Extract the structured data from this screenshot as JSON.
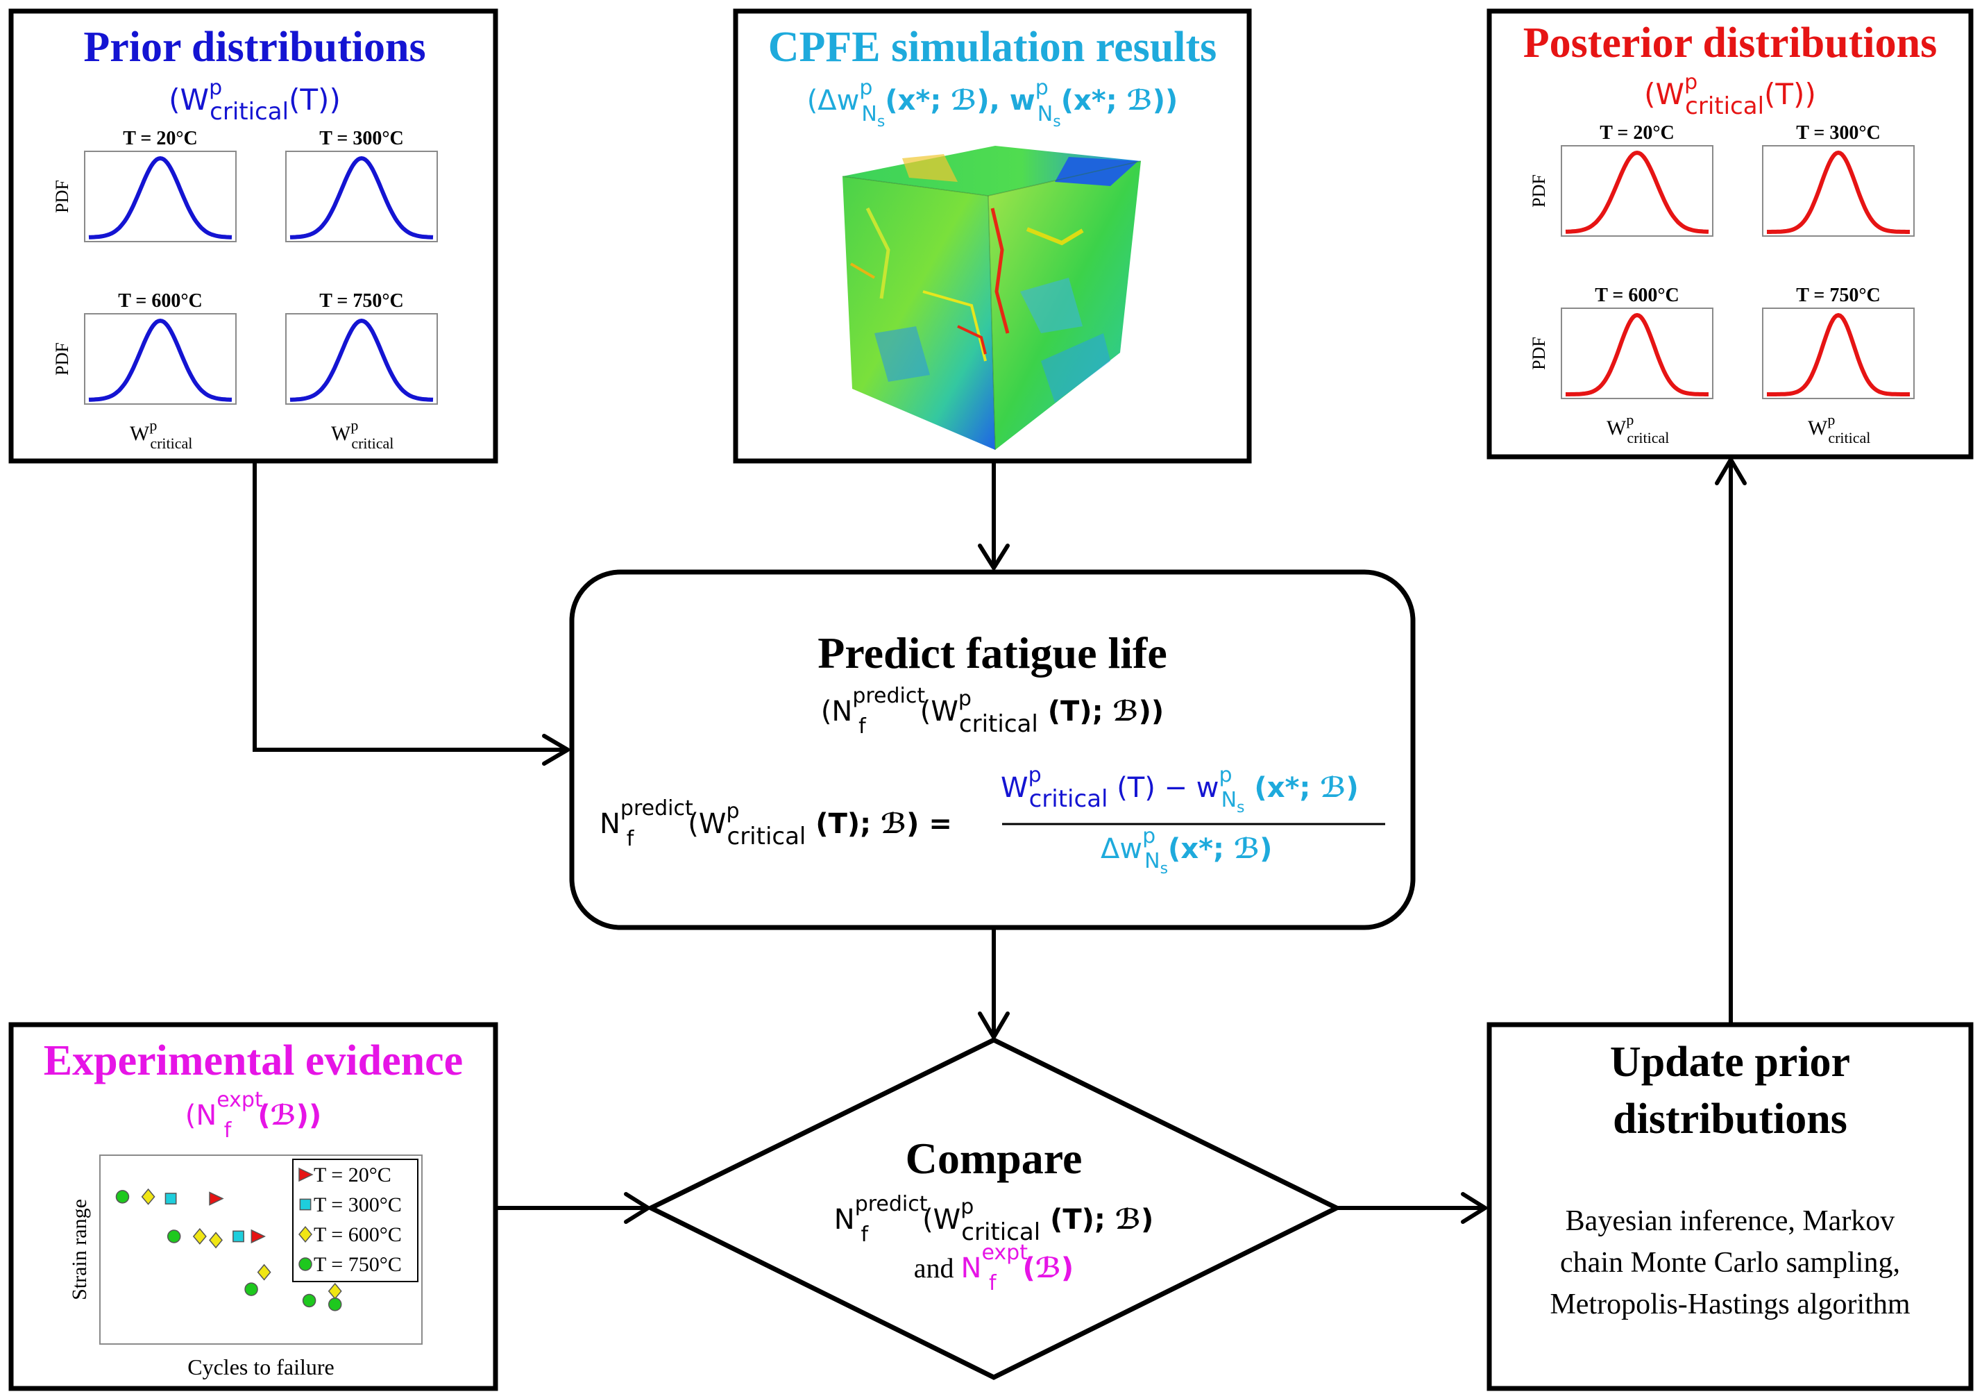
{
  "prior": {
    "title": "Prior distributions",
    "subtitle_open": "(W",
    "subtitle_sup": "p",
    "subtitle_sub": "critical",
    "subtitle_close": "(T))",
    "color": "#1414d2",
    "ylabel": "PDF",
    "xlabel_main": "W",
    "xlabel_sup": "p",
    "xlabel_sub": "critical",
    "plots": [
      {
        "label": "T = 20°C",
        "mu": 0.5,
        "sigma": 0.14
      },
      {
        "label": "T = 300°C",
        "mu": 0.5,
        "sigma": 0.14
      },
      {
        "label": "T = 600°C",
        "mu": 0.5,
        "sigma": 0.14
      },
      {
        "label": "T = 750°C",
        "mu": 0.5,
        "sigma": 0.14
      }
    ]
  },
  "cpfe": {
    "title": "CPFE simulation results",
    "color": "#1eaadc",
    "formula": {
      "open": "(Δw",
      "sup1": "p",
      "sub1": "N",
      "subsub1": "s",
      "arg1": "(x*; ℬ), w",
      "sup2": "p",
      "sub2": "N",
      "subsub2": "s",
      "arg2": "(x*; ℬ))"
    },
    "cube_icon": "microstructure-cube"
  },
  "posterior": {
    "title": "Posterior distributions",
    "subtitle_open": "(W",
    "subtitle_sup": "p",
    "subtitle_sub": "critical",
    "subtitle_close": "(T))",
    "color": "#e61414",
    "ylabel": "PDF",
    "xlabel_main": "W",
    "xlabel_sup": "p",
    "xlabel_sub": "critical",
    "plots": [
      {
        "label": "T = 20°C",
        "mu": 0.5,
        "sigma": 0.14
      },
      {
        "label": "T = 300°C",
        "mu": 0.5,
        "sigma": 0.12
      },
      {
        "label": "T = 600°C",
        "mu": 0.5,
        "sigma": 0.12
      },
      {
        "label": "T = 750°C",
        "mu": 0.5,
        "sigma": 0.11
      }
    ]
  },
  "predict": {
    "title": "Predict fatigue life",
    "sub_open": "(N",
    "sub_sup": "predict",
    "sub_sub": "f",
    "sub_w": "(W",
    "sub_wsup": "p",
    "sub_wsub": "critical",
    "sub_close": " (T); ℬ))",
    "lhs_n": "N",
    "lhs_sup": "predict",
    "lhs_sub": "f",
    "lhs_w": "(W",
    "lhs_wsup": "p",
    "lhs_wsub": "critical",
    "lhs_close": " (T); ℬ) =",
    "num_w": "W",
    "num_wsup": "p",
    "num_wsub": "critical",
    "num_mid": " (T) − w",
    "num_wsup2": "p",
    "num_nsub": "N",
    "num_ssub": "s",
    "num_close": " (x*; ℬ)",
    "den_open": "Δw",
    "den_sup": "p",
    "den_sub": "N",
    "den_ssub": "s",
    "den_close": "(x*; ℬ)"
  },
  "compare": {
    "title": "Compare",
    "line1_n": "N",
    "line1_sup": "predict",
    "line1_sub": "f",
    "line1_w": "(W",
    "line1_wsup": "p",
    "line1_wsub": "critical",
    "line1_close": " (T); ℬ)",
    "line2_and": "and ",
    "line2_n": "N",
    "line2_sup": "expt",
    "line2_sub": "f",
    "line2_close": "(ℬ)",
    "magenta": "#e614e6"
  },
  "experimental": {
    "title": "Experimental evidence",
    "color": "#e614e6",
    "sub_open": "(N",
    "sub_sup": "expt",
    "sub_sub": "f",
    "sub_close": "(ℬ))",
    "ylabel": "Strain range",
    "xlabel": "Cycles to failure",
    "legend": [
      {
        "label": "T = 20°C",
        "marker": "triangle",
        "color": "#e61414"
      },
      {
        "label": "T = 300°C",
        "marker": "square",
        "color": "#1ecedc"
      },
      {
        "label": "T = 600°C",
        "marker": "diamond",
        "color": "#f0e614"
      },
      {
        "label": "T = 750°C",
        "marker": "circle",
        "color": "#1ec81e"
      }
    ],
    "points": [
      {
        "marker": "circle",
        "x": 0.07,
        "y": 0.78
      },
      {
        "marker": "diamond",
        "x": 0.15,
        "y": 0.78
      },
      {
        "marker": "square",
        "x": 0.22,
        "y": 0.77
      },
      {
        "marker": "triangle",
        "x": 0.36,
        "y": 0.77
      },
      {
        "marker": "circle",
        "x": 0.23,
        "y": 0.57
      },
      {
        "marker": "diamond",
        "x": 0.31,
        "y": 0.57
      },
      {
        "marker": "diamond",
        "x": 0.36,
        "y": 0.55
      },
      {
        "marker": "square",
        "x": 0.43,
        "y": 0.57
      },
      {
        "marker": "triangle",
        "x": 0.49,
        "y": 0.57
      },
      {
        "marker": "diamond",
        "x": 0.51,
        "y": 0.38
      },
      {
        "marker": "circle",
        "x": 0.47,
        "y": 0.29
      },
      {
        "marker": "circle",
        "x": 0.65,
        "y": 0.23
      },
      {
        "marker": "diamond",
        "x": 0.73,
        "y": 0.28
      },
      {
        "marker": "circle",
        "x": 0.73,
        "y": 0.21
      }
    ]
  },
  "update": {
    "title_line1": "Update prior",
    "title_line2": "distributions",
    "body_line1": "Bayesian inference, Markov",
    "body_line2": "chain Monte Carlo sampling,",
    "body_line3": "Metropolis-Hastings algorithm"
  }
}
